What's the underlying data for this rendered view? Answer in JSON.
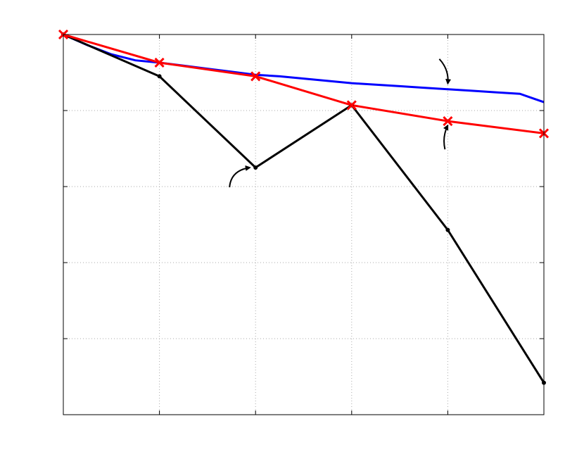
{
  "chart_data": {
    "type": "line",
    "title": "",
    "xlabel": "",
    "ylabel": "",
    "x": [
      0,
      1,
      2,
      3,
      4,
      5
    ],
    "xlim": [
      0,
      5
    ],
    "ylim": [
      0,
      5
    ],
    "grid": true,
    "series": [
      {
        "color": "#0000ff",
        "marker": "none",
        "x": [
          0,
          0.25,
          0.5,
          0.75,
          1,
          1.25,
          1.5,
          1.75,
          2,
          2.25,
          2.5,
          2.75,
          3,
          3.25,
          3.5,
          3.75,
          4,
          4.25,
          4.5,
          4.75,
          5
        ],
        "values": [
          5.0,
          4.86,
          4.74,
          4.66,
          4.63,
          4.59,
          4.55,
          4.51,
          4.47,
          4.45,
          4.42,
          4.39,
          4.36,
          4.34,
          4.32,
          4.3,
          4.28,
          4.26,
          4.24,
          4.22,
          4.11
        ]
      },
      {
        "color": "#ff0000",
        "marker": "x",
        "x": [
          0,
          1,
          2,
          3,
          4,
          5
        ],
        "values": [
          5.0,
          4.63,
          4.45,
          4.07,
          3.86,
          3.7
        ]
      },
      {
        "color": "#000000",
        "marker": "dot",
        "x": [
          0,
          1,
          2,
          3,
          4,
          5
        ],
        "values": [
          5.0,
          4.45,
          3.25,
          4.07,
          2.43,
          0.42
        ]
      }
    ],
    "annotation_arrows": [
      {
        "target_series": 0,
        "near_x": 4.0,
        "direction": "down"
      },
      {
        "target_series": 1,
        "near_x": 4.0,
        "direction": "up"
      },
      {
        "target_series": 2,
        "near_x": 2.0,
        "direction": "right"
      }
    ]
  }
}
